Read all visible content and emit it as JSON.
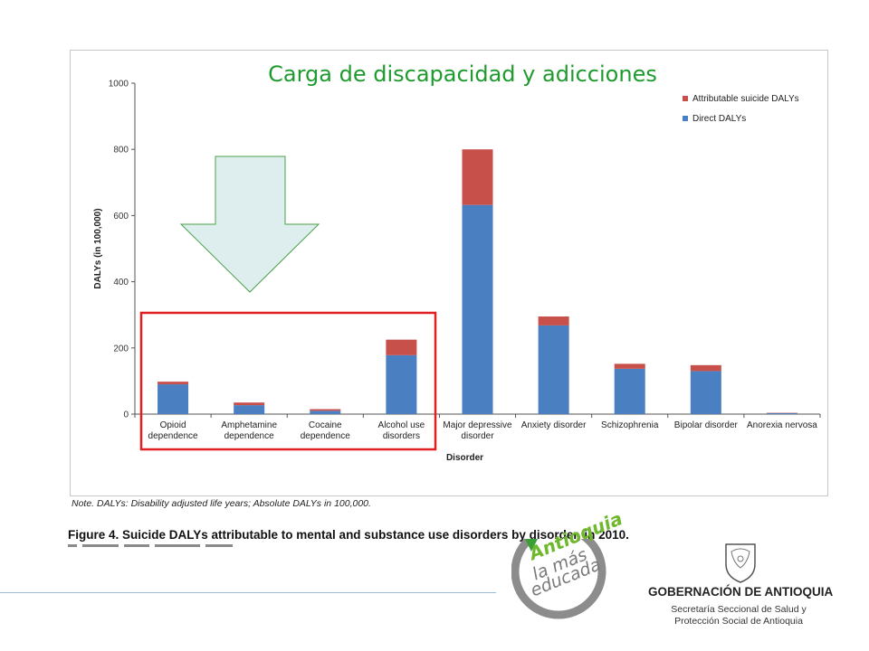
{
  "slide": {
    "title": "Carga de discapacidad y adicciones",
    "note": "Note. DALYs: Disability adjusted life years; Absolute DALYs in 100,000.",
    "caption": "Figure 4. Suicide DALYs attributable to mental and substance use disorders by disorder, in 2010."
  },
  "logos": {
    "antioquia_line1": "Antioquia",
    "antioquia_line2": "la más",
    "antioquia_line3": "educada",
    "gobernacion": "GOBERNACIÓN DE ANTIOQUIA",
    "secretaria_line1": "Secretaría Seccional de Salud y",
    "secretaria_line2": "Protección Social de Antioquia"
  },
  "colors": {
    "direct": "#4a7fc1",
    "attributable": "#c8504b",
    "title_green": "#1e9a2e",
    "highlight_red": "#e02020",
    "arrow_fill": "#deeeee",
    "arrow_stroke": "#4aa04a"
  },
  "chart_data": {
    "type": "bar",
    "stacked": true,
    "xlabel": "Disorder",
    "ylabel": "DALYs (in 100,000)",
    "ylim": [
      0,
      1000
    ],
    "yticks": [
      0,
      200,
      400,
      600,
      800,
      1000
    ],
    "legend_position": "top-right",
    "categories": [
      [
        "Opioid",
        "dependence"
      ],
      [
        "Amphetamine",
        "dependence"
      ],
      [
        "Cocaine",
        "dependence"
      ],
      [
        "Alcohol use",
        "disorders"
      ],
      [
        "Major depressive",
        "disorder"
      ],
      [
        "Anxiety disorder"
      ],
      [
        "Schizophrenia"
      ],
      [
        "Bipolar disorder"
      ],
      [
        "Anorexia nervosa"
      ]
    ],
    "series": [
      {
        "name": "Direct DALYs",
        "values": [
          90,
          27,
          10,
          178,
          632,
          268,
          137,
          130,
          3
        ]
      },
      {
        "name": "Attributable suicide DALYs",
        "values": [
          8,
          8,
          5,
          47,
          168,
          27,
          15,
          18,
          1
        ]
      }
    ]
  }
}
